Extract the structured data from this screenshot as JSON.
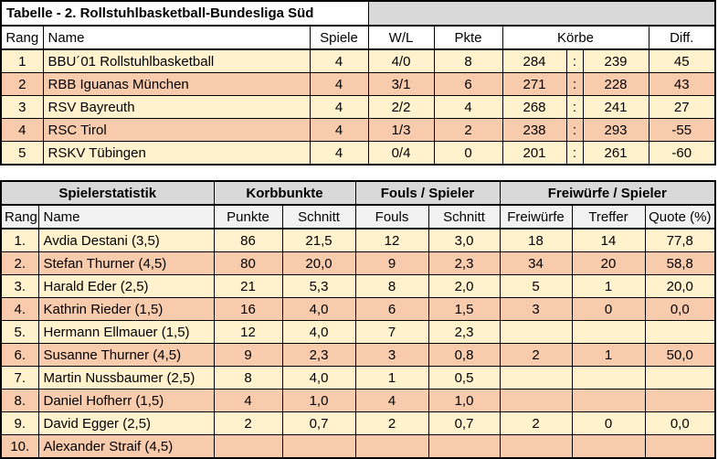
{
  "colors": {
    "row_cream": "#FFF2CC",
    "row_peach": "#F8CBAD",
    "header_gray": "#D9D9D9",
    "subheader_gray": "#F2F2F2",
    "border": "#000000"
  },
  "standings": {
    "title": "Tabelle - 2. Rollstuhlbasketball-Bundesliga Süd",
    "headers": [
      "Rang",
      "Name",
      "Spiele",
      "W/L",
      "Pkte",
      "Körbe",
      "Diff."
    ],
    "rows": [
      [
        "1",
        "BBU´01 Rollstuhlbasketball",
        "4",
        "4/0",
        "8",
        "284",
        ":",
        "239",
        "45"
      ],
      [
        "2",
        "RBB Iguanas München",
        "4",
        "3/1",
        "6",
        "271",
        ":",
        "228",
        "43"
      ],
      [
        "3",
        "RSV Bayreuth",
        "4",
        "2/2",
        "4",
        "268",
        ":",
        "241",
        "27"
      ],
      [
        "4",
        "RSC Tirol",
        "4",
        "1/3",
        "2",
        "238",
        ":",
        "293",
        "-55"
      ],
      [
        "5",
        "RSKV Tübingen",
        "4",
        "0/4",
        "0",
        "201",
        ":",
        "261",
        "-60"
      ]
    ]
  },
  "player_stats": {
    "group_headers": [
      "Spielerstatistik",
      "Korbbunkte",
      "Fouls / Spieler",
      "Freiwürfe / Spieler"
    ],
    "headers": [
      "Rang",
      "Name",
      "Punkte",
      "Schnitt",
      "Fouls",
      "Schnitt",
      "Freiwürfe",
      "Treffer",
      "Quote (%)"
    ],
    "rows": [
      [
        "1.",
        "Avdia Destani (3,5)",
        "86",
        "21,5",
        "12",
        "3,0",
        "18",
        "14",
        "77,8"
      ],
      [
        "2.",
        "Stefan Thurner (4,5)",
        "80",
        "20,0",
        "9",
        "2,3",
        "34",
        "20",
        "58,8"
      ],
      [
        "3.",
        "Harald Eder (2,5)",
        "21",
        "5,3",
        "8",
        "2,0",
        "5",
        "1",
        "20,0"
      ],
      [
        "4.",
        "Kathrin Rieder (1,5)",
        "16",
        "4,0",
        "6",
        "1,5",
        "3",
        "0",
        "0,0"
      ],
      [
        "5.",
        "Hermann Ellmauer (1,5)",
        "12",
        "4,0",
        "7",
        "2,3",
        "",
        "",
        ""
      ],
      [
        "6.",
        "Susanne Thurner (4,5)",
        "9",
        "2,3",
        "3",
        "0,8",
        "2",
        "1",
        "50,0"
      ],
      [
        "7.",
        "Martin Nussbaumer (2,5)",
        "8",
        "4,0",
        "1",
        "0,5",
        "",
        "",
        ""
      ],
      [
        "8.",
        "Daniel Hofherr (1,5)",
        "4",
        "1,0",
        "4",
        "1,0",
        "",
        "",
        ""
      ],
      [
        "9.",
        "David Egger (2,5)",
        "2",
        "0,7",
        "2",
        "0,7",
        "2",
        "0",
        "0,0"
      ],
      [
        "10.",
        "Alexander Straif (4,5)",
        "",
        "",
        "",
        "",
        "",
        "",
        ""
      ]
    ]
  }
}
